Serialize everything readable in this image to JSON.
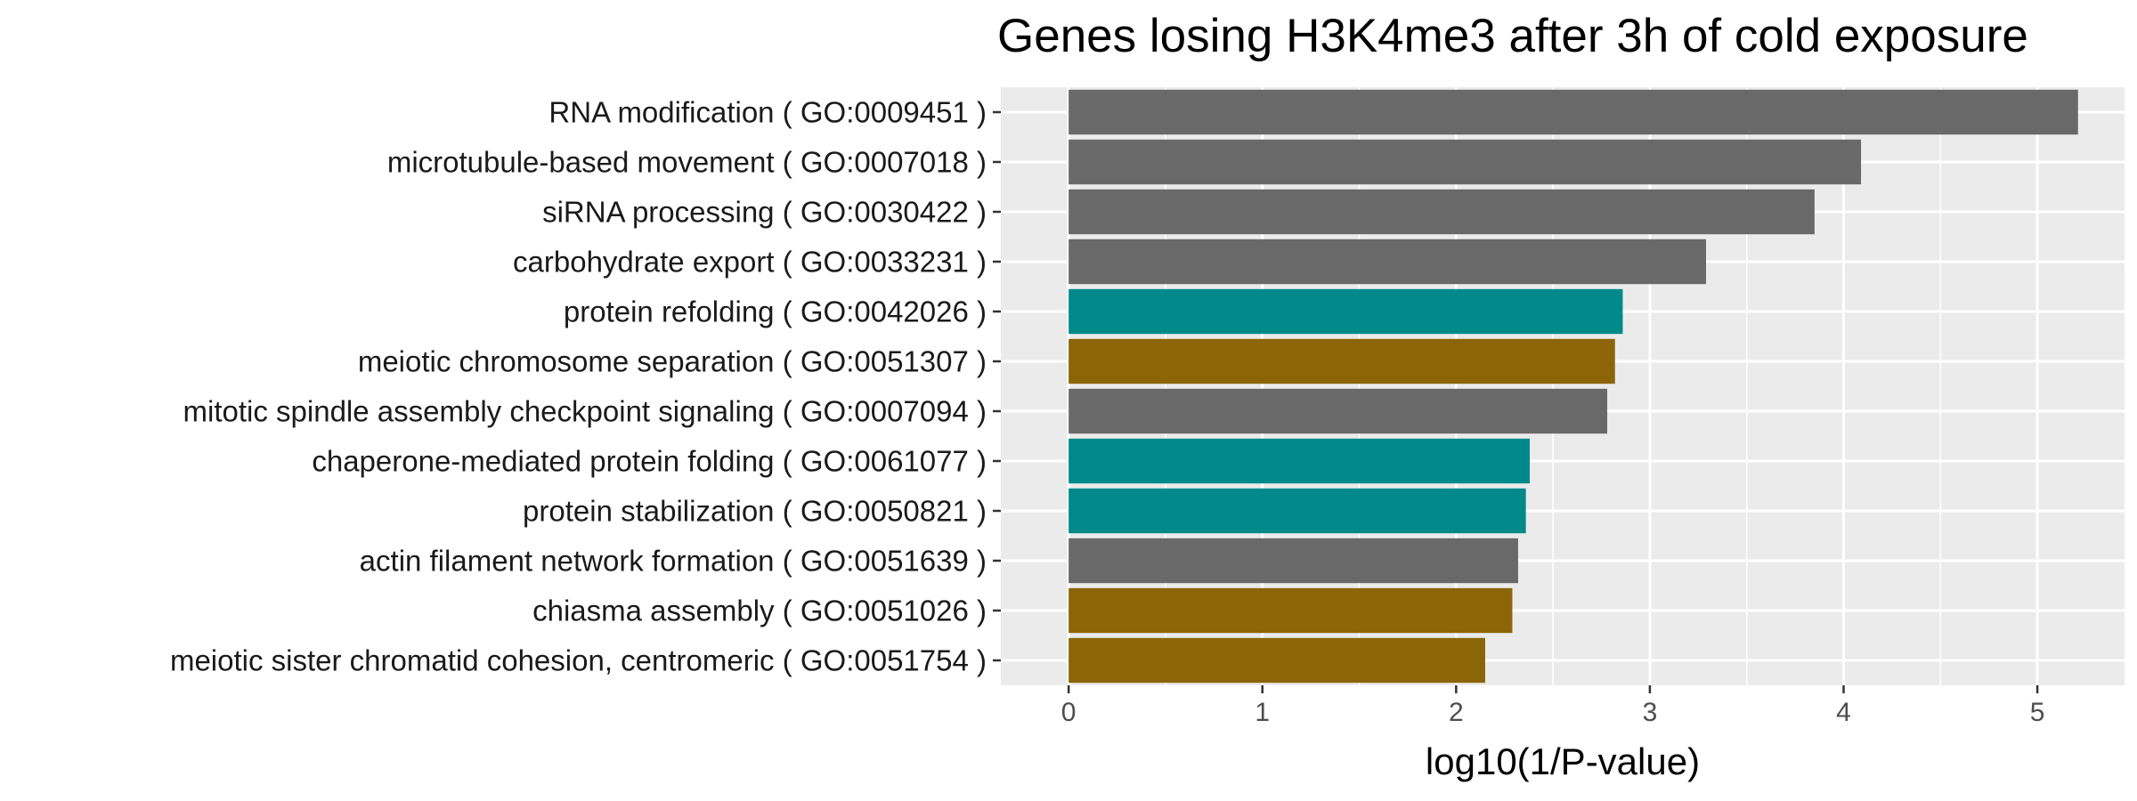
{
  "chart_data": {
    "type": "bar",
    "orientation": "horizontal",
    "title": "Genes losing H3K4me3 after 3h of cold exposure",
    "xlabel": "log10(1/P-value)",
    "ylabel": "",
    "xlim": [
      -0.35,
      5.45
    ],
    "xticks": [
      0,
      1,
      2,
      3,
      4,
      5
    ],
    "grid": true,
    "legend": "none",
    "colors": {
      "gray": "#696969",
      "teal": "#00898A",
      "brown": "#8B6508",
      "panel": "#EBEBEB",
      "grid": "#FFFFFF"
    },
    "categories": [
      "RNA modification ( GO:0009451 )",
      "microtubule-based movement ( GO:0007018 )",
      "siRNA processing ( GO:0030422 )",
      "carbohydrate export ( GO:0033231 )",
      "protein refolding ( GO:0042026 )",
      "meiotic chromosome separation ( GO:0051307 )",
      "mitotic spindle assembly checkpoint signaling ( GO:0007094 )",
      "chaperone-mediated protein folding ( GO:0061077 )",
      "protein stabilization ( GO:0050821 )",
      "actin filament network formation ( GO:0051639 )",
      "chiasma assembly ( GO:0051026 )",
      "meiotic sister chromatid cohesion, centromeric ( GO:0051754 )"
    ],
    "values": [
      5.21,
      4.09,
      3.85,
      3.29,
      2.86,
      2.82,
      2.78,
      2.38,
      2.36,
      2.32,
      2.29,
      2.15
    ],
    "bar_colors": [
      "gray",
      "gray",
      "gray",
      "gray",
      "teal",
      "brown",
      "gray",
      "teal",
      "teal",
      "gray",
      "brown",
      "brown"
    ]
  }
}
